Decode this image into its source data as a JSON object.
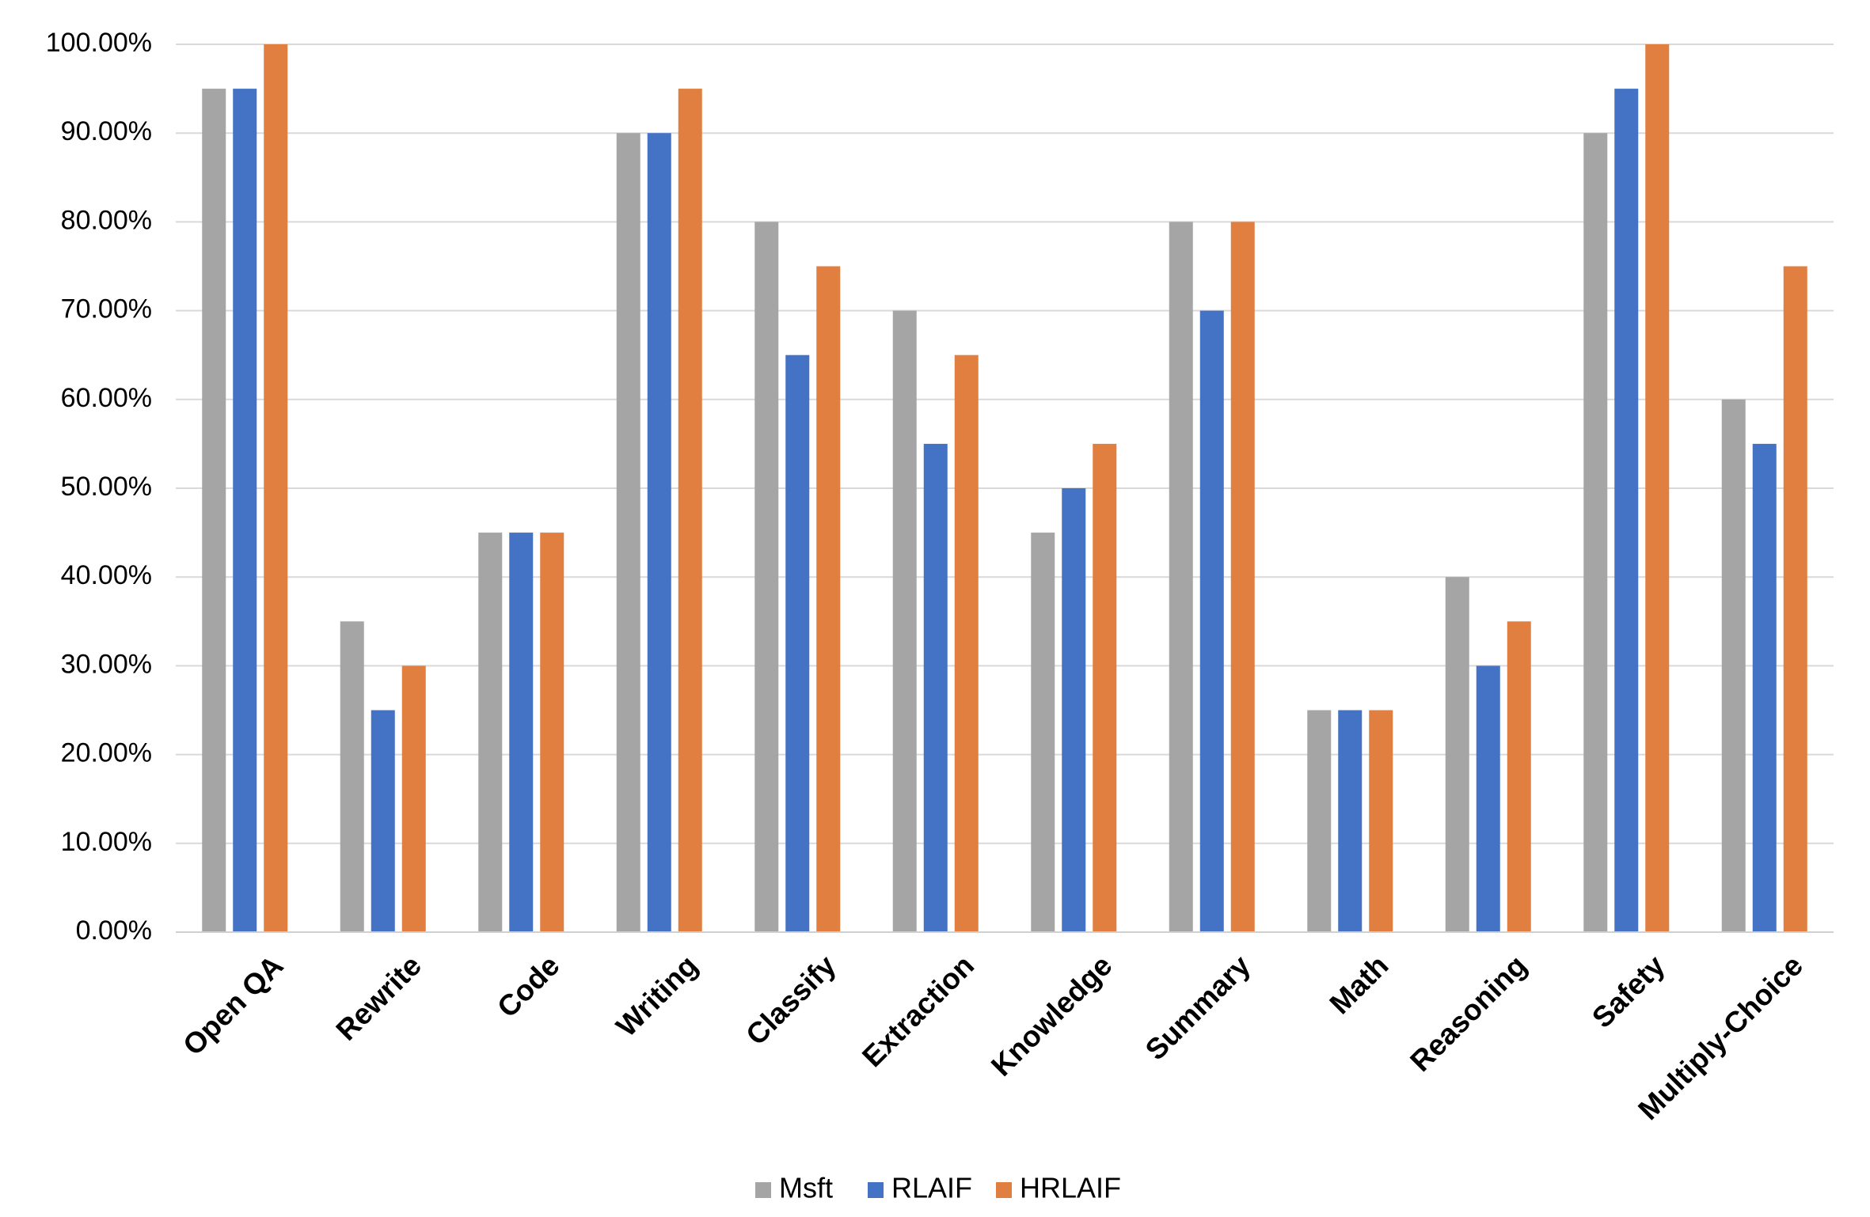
{
  "chart_data": {
    "type": "bar",
    "categories": [
      "Open QA",
      "Rewrite",
      "Code",
      "Writing",
      "Classify",
      "Extraction",
      "Knowledge",
      "Summary",
      "Math",
      "Reasoning",
      "Safety",
      "Multiply-Choice"
    ],
    "series": [
      {
        "name": "Msft",
        "color": "#a5a5a5",
        "values": [
          95,
          35,
          45,
          90,
          80,
          70,
          45,
          80,
          25,
          40,
          90,
          60
        ]
      },
      {
        "name": "RLAIF",
        "color": "#4472c4",
        "values": [
          95,
          25,
          45,
          90,
          65,
          55,
          50,
          70,
          25,
          30,
          95,
          55
        ]
      },
      {
        "name": "HRLAIF",
        "color": "#e07f3f",
        "values": [
          100,
          30,
          45,
          95,
          75,
          65,
          55,
          80,
          25,
          35,
          100,
          75
        ]
      }
    ],
    "title": "",
    "xlabel": "",
    "ylabel": "",
    "ylim": [
      0,
      100
    ],
    "y_ticks": [
      "0.00%",
      "10.00%",
      "20.00%",
      "30.00%",
      "40.00%",
      "50.00%",
      "60.00%",
      "70.00%",
      "80.00%",
      "90.00%",
      "100.00%"
    ],
    "grid": true,
    "gridline_color": "#d9d9d9",
    "legend_position": "bottom"
  }
}
